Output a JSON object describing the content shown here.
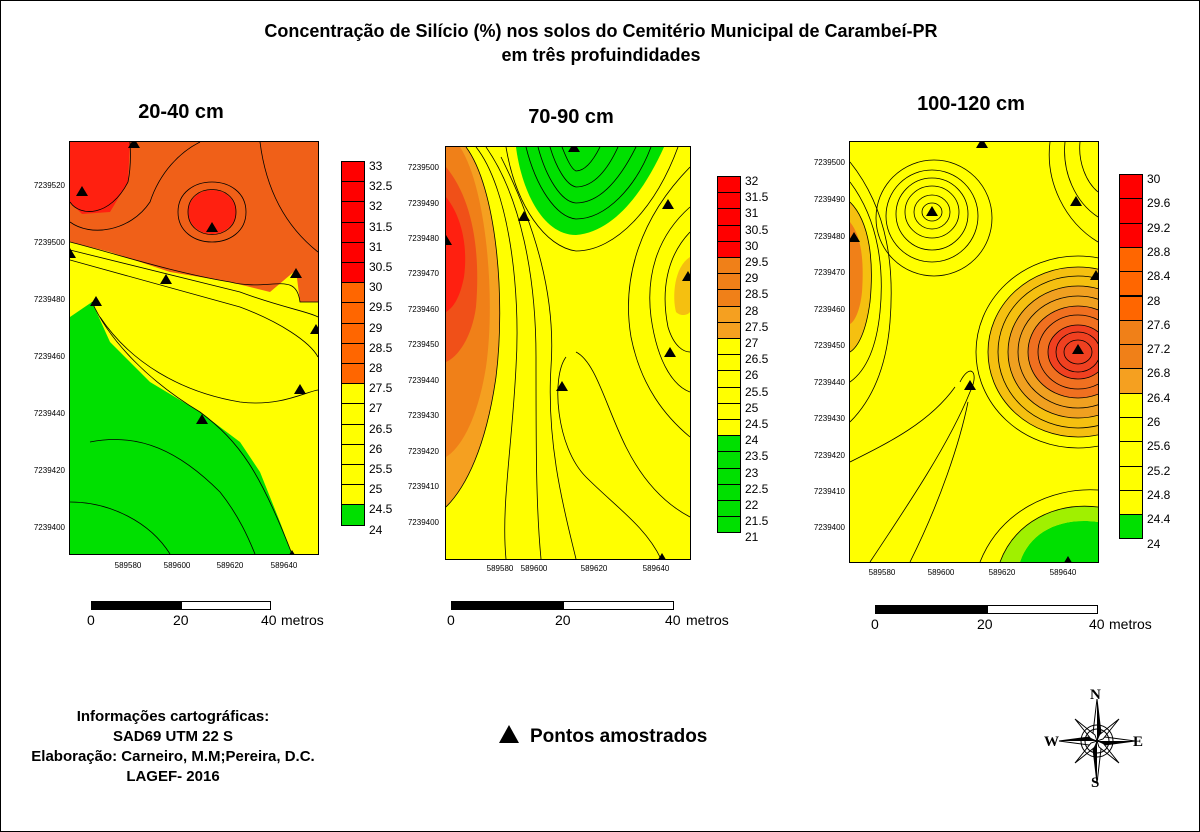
{
  "title": {
    "line1": "Concentração de Silício (%) nos solos do Cemitério Municipal de Carambeí-PR",
    "line2": "em três profuindidades"
  },
  "panels": [
    {
      "title": "20-40 cm",
      "y_ticks": [
        "7239520",
        "7239500",
        "7239480",
        "7239460",
        "7239440",
        "7239420",
        "7239400"
      ],
      "x_ticks": [
        "589580",
        "589600",
        "589620",
        "589640"
      ],
      "legend": [
        "33",
        "32.5",
        "32",
        "31.5",
        "31",
        "30.5",
        "30",
        "29.5",
        "29",
        "28.5",
        "28",
        "27.5",
        "27",
        "26.5",
        "26",
        "25.5",
        "25",
        "24.5",
        "24"
      ],
      "scale": {
        "labels": [
          "0",
          "20",
          "40"
        ],
        "unit": "metros"
      }
    },
    {
      "title": "70-90 cm",
      "y_ticks": [
        "7239500",
        "7239490",
        "7239480",
        "7239470",
        "7239460",
        "7239450",
        "7239440",
        "7239430",
        "7239420",
        "7239410",
        "7239400"
      ],
      "x_ticks": [
        "589580",
        "589600",
        "589620",
        "589640"
      ],
      "legend": [
        "32",
        "31.5",
        "31",
        "30.5",
        "30",
        "29.5",
        "29",
        "28.5",
        "28",
        "27.5",
        "27",
        "26.5",
        "26",
        "25.5",
        "25",
        "24.5",
        "24",
        "23.5",
        "23",
        "22.5",
        "22",
        "21.5",
        "21"
      ],
      "scale": {
        "labels": [
          "0",
          "20",
          "40"
        ],
        "unit": "metros"
      }
    },
    {
      "title": "100-120 cm",
      "y_ticks": [
        "7239500",
        "7239490",
        "7239480",
        "7239470",
        "7239460",
        "7239450",
        "7239440",
        "7239430",
        "7239420",
        "7239410",
        "7239400"
      ],
      "x_ticks": [
        "589580",
        "589600",
        "589620",
        "589640"
      ],
      "legend": [
        "30",
        "29.6",
        "29.2",
        "28.8",
        "28.4",
        "28",
        "27.6",
        "27.2",
        "26.8",
        "26.4",
        "26",
        "25.6",
        "25.2",
        "24.8",
        "24.4",
        "24"
      ],
      "scale": {
        "labels": [
          "0",
          "20",
          "40"
        ],
        "unit": "metros"
      }
    }
  ],
  "legend_points": "Pontos amostrados",
  "info": {
    "line1": "Informações cartográficas:",
    "line2": "SAD69  UTM 22 S",
    "line3": "Elaboração: Carneiro, M.M;Pereira, D.C.",
    "line4": "LAGEF- 2016"
  },
  "compass": {
    "n": "N",
    "s": "S",
    "e": "E",
    "w": "W"
  },
  "colors": {
    "red": "#ff0000",
    "orange_red": "#ff6600",
    "orange": "#f08018",
    "light_orange": "#f5a020",
    "yellow": "#ffff00",
    "green": "#00e000"
  }
}
